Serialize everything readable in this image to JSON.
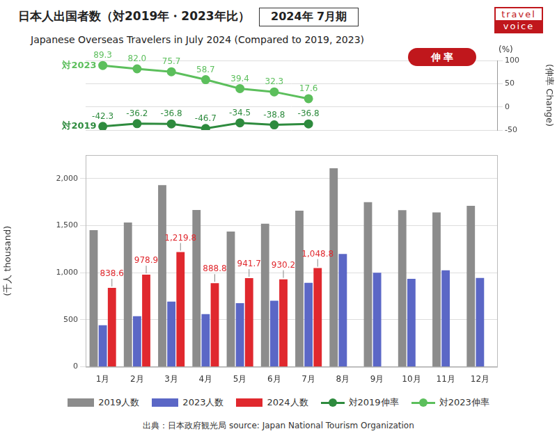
{
  "header": {
    "title": "日本人出国者数（対2019年・2023年比）",
    "period": "2024年 7月期",
    "subtitle": "Japanese Overseas Travelers in July 2024 (Compared to 2019, 2023)",
    "logo": [
      "travel",
      "voice"
    ]
  },
  "source": "出典：日本政府観光局  source: Japan National Tourism Organization",
  "chart_data": [
    {
      "type": "line",
      "title": "伸 率",
      "ylabel": "(伸率 Change)",
      "y_unit": "(%)",
      "categories": [
        "1月",
        "2月",
        "3月",
        "4月",
        "5月",
        "6月",
        "7月",
        "8月",
        "9月",
        "10月",
        "11月",
        "12月"
      ],
      "ylim": [
        -50,
        100
      ],
      "yticks": [
        -50,
        0,
        50,
        100
      ],
      "grid": true,
      "tick_labels": "y",
      "data_labels": true,
      "series": [
        {
          "name": "対2019伸率",
          "label": "対2019",
          "color": "#2e8b3e",
          "marker": "circle",
          "values": [
            -42.3,
            -36.2,
            -36.8,
            -46.7,
            -34.5,
            -38.8,
            -36.8,
            null,
            null,
            null,
            null,
            null
          ],
          "value_labels": [
            "-42.3",
            "-36.2",
            "-36.8",
            "-46.7",
            "-34.5",
            "-38.8",
            "-36.8",
            null,
            null,
            null,
            null,
            null
          ]
        },
        {
          "name": "対2023伸率",
          "label": "対2023",
          "color": "#5cbf5c",
          "marker": "circle",
          "values": [
            89.3,
            82.0,
            75.7,
            58.7,
            39.4,
            32.3,
            17.6,
            null,
            null,
            null,
            null,
            null
          ],
          "value_labels": [
            "89.3",
            "82.0",
            "75.7",
            "58.7",
            "39.4",
            "32.3",
            "17.6",
            null,
            null,
            null,
            null,
            null
          ]
        }
      ]
    },
    {
      "type": "bar",
      "ylabel": "(千人 thousand)",
      "categories": [
        "1月",
        "2月",
        "3月",
        "4月",
        "5月",
        "6月",
        "7月",
        "8月",
        "9月",
        "10月",
        "11月",
        "12月"
      ],
      "ylim": [
        0,
        2250
      ],
      "yticks": [
        0,
        500,
        {
          "value": 1000,
          "label": "1,000"
        },
        {
          "value": 1500,
          "label": "1,500"
        },
        {
          "value": 2000,
          "label": "2,000"
        }
      ],
      "grid": true,
      "legend": "bottom",
      "series": [
        {
          "name": "2019人数",
          "color": "#8c8c8c",
          "values": [
            1453,
            1534,
            1930,
            1667,
            1438,
            1520,
            1659,
            2110,
            1750,
            1665,
            1640,
            1710
          ]
        },
        {
          "name": "2023人数",
          "color": "#5b67c6",
          "values": [
            443,
            538,
            694,
            560,
            676,
            703,
            892,
            1200,
            1000,
            935,
            1025,
            945
          ]
        },
        {
          "name": "2024人数",
          "color": "#e0282e",
          "data_labels": true,
          "values": [
            838.6,
            978.9,
            1219.8,
            888.8,
            941.7,
            930.2,
            1048.8,
            null,
            null,
            null,
            null,
            null
          ],
          "value_labels": [
            "838.6",
            "978.9",
            "1,219.8",
            "888.8",
            "941.7",
            "930.2",
            "1,048.8",
            null,
            null,
            null,
            null,
            null
          ]
        }
      ]
    }
  ]
}
